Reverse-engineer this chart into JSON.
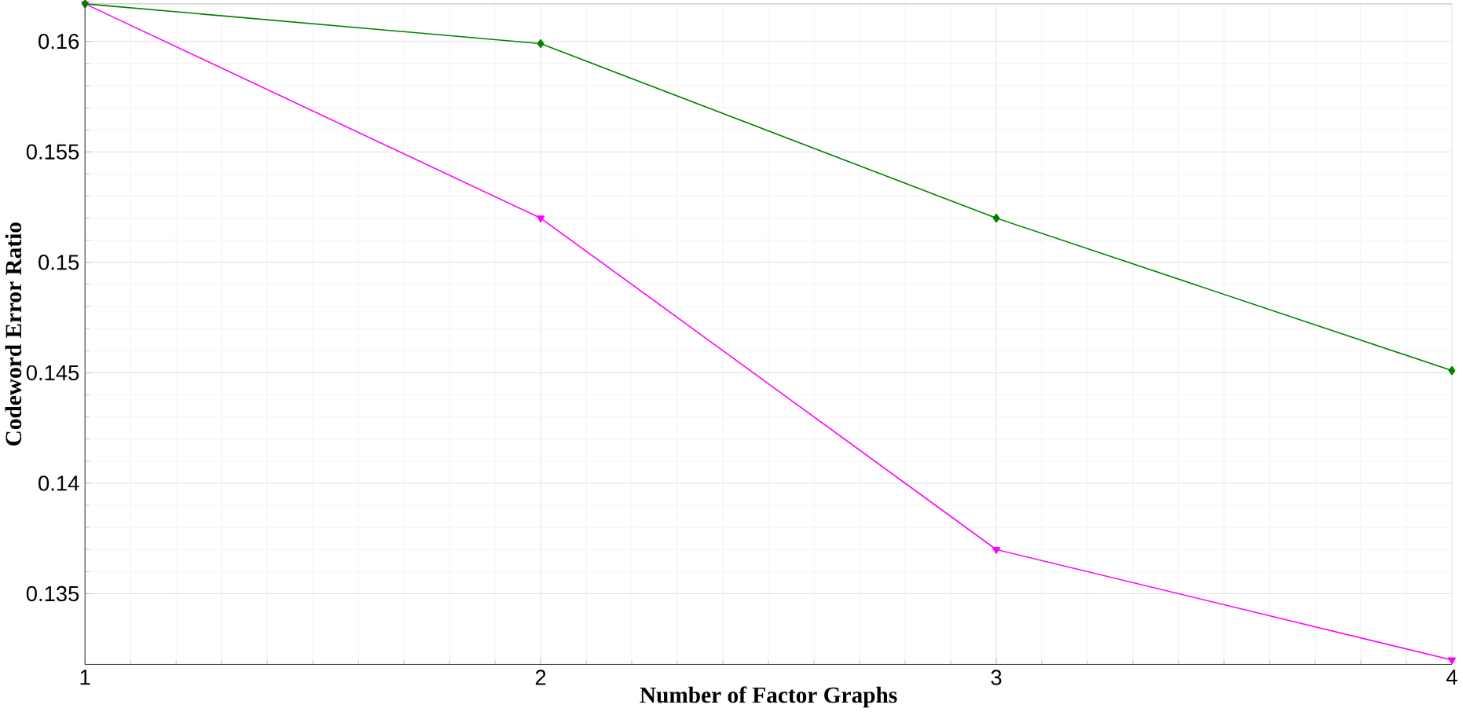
{
  "chart_data": {
    "type": "line",
    "xlabel": "Number of Factor Graphs",
    "ylabel": "Codeword Error Ratio",
    "x": [
      1,
      2,
      3,
      4
    ],
    "series": [
      {
        "color": "#008000",
        "marker": "diamond",
        "values": [
          0.1617,
          0.1599,
          0.152,
          0.1451
        ]
      },
      {
        "color": "#ff00ff",
        "marker": "triangle",
        "values": [
          0.1617,
          0.152,
          0.137,
          0.132
        ]
      }
    ],
    "xlim": [
      1,
      4
    ],
    "xticks": [
      1,
      2,
      3,
      4
    ],
    "ylim": [
      0.1318,
      0.1617
    ],
    "yticks": [
      0.135,
      0.14,
      0.145,
      0.15,
      0.155,
      0.16
    ],
    "grid": true,
    "line_style": "solid"
  }
}
